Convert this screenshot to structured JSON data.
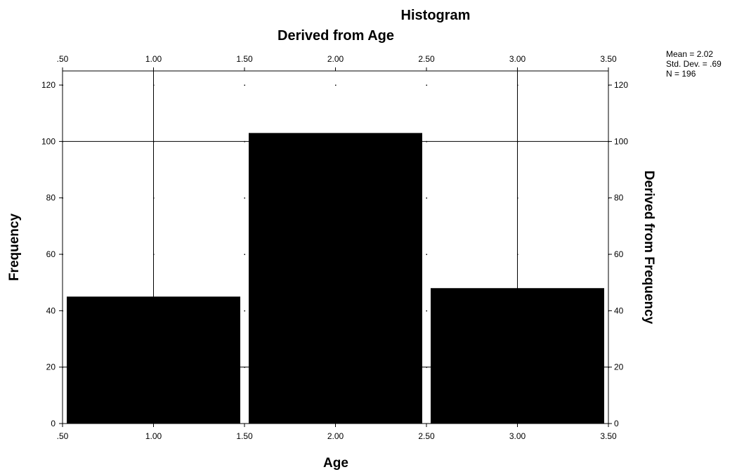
{
  "chart_data": {
    "type": "bar",
    "title": "Histogram",
    "subtitle": "Derived from Age",
    "xlabel": "Age",
    "ylabel": "Frequency",
    "y2label": "Derived from Frequency",
    "bins": [
      {
        "x0": 0.5,
        "x1": 1.5,
        "value": 45
      },
      {
        "x0": 1.5,
        "x1": 2.5,
        "value": 103
      },
      {
        "x0": 2.5,
        "x1": 3.5,
        "value": 48
      }
    ],
    "xlim": [
      0.5,
      3.5
    ],
    "ylim": [
      0,
      125
    ],
    "x_ticks": [
      ".50",
      "1.00",
      "1.50",
      "2.00",
      "2.50",
      "3.00",
      "3.50"
    ],
    "x_tick_values": [
      0.5,
      1.0,
      1.5,
      2.0,
      2.5,
      3.0,
      3.5
    ],
    "y_ticks": [
      "0",
      "20",
      "40",
      "60",
      "80",
      "100",
      "120"
    ],
    "y_tick_values": [
      0,
      20,
      40,
      60,
      80,
      100,
      120
    ],
    "grid_x_values": [
      1.0,
      3.0
    ],
    "grid_y_values": [
      20,
      100
    ],
    "bar_color": "#000000",
    "stats": [
      "Mean = 2.02",
      "Std. Dev. = .69",
      "N = 196"
    ]
  }
}
